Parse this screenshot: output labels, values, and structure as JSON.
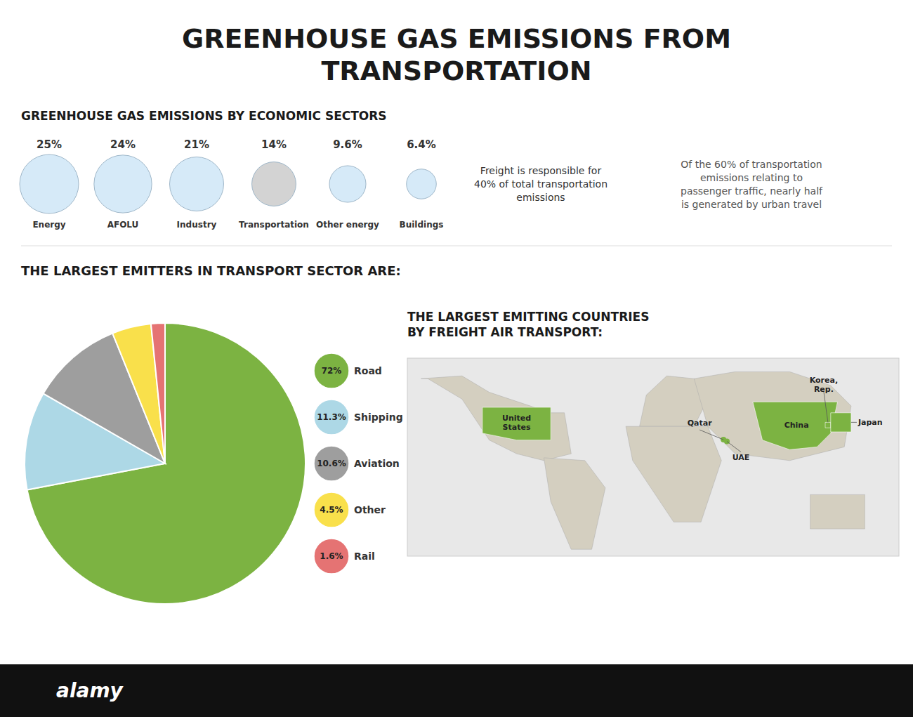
{
  "title": "GREENHOUSE GAS EMISSIONS FROM\nTRANSPORTATION",
  "annotations": [
    "Freight is responsible for\n40% of total transportation\nemissions",
    "Of the 60% of transportation\nemissions relating to\npassenger traffic, nearly half\nis generated by urban travel",
    "alamy"
  ],
  "chart_data": [
    {
      "type": "pictogram",
      "title": "GREENHOUSE GAS EMISSIONS BY ECONOMIC SECTORS",
      "categories": [
        "Energy",
        "AFOLU",
        "Industry",
        "Transportation",
        "Other energy",
        "Buildings"
      ],
      "values": [
        25,
        24,
        21,
        14,
        9.6,
        6.4
      ],
      "value_labels": [
        "25%",
        "24%",
        "21%",
        "14%",
        "9.6%",
        "6.4%"
      ],
      "colors": [
        "#d6eaf8",
        "#d6eaf8",
        "#d6eaf8",
        "#d3d3d3",
        "#d6eaf8",
        "#d6eaf8"
      ],
      "data_labels": true
    },
    {
      "type": "pie",
      "title": "THE LARGEST EMITTERS IN TRANSPORT SECTOR ARE:",
      "categories": [
        "Road",
        "Shipping",
        "Aviation",
        "Other",
        "Rail"
      ],
      "values": [
        72,
        11.3,
        10.6,
        4.5,
        1.6
      ],
      "value_labels": [
        "72%",
        "11.3%",
        "10.6%",
        "4.5%",
        "1.6%"
      ],
      "colors": [
        "#7cb342",
        "#add8e6",
        "#9e9e9e",
        "#f9e04b",
        "#e57373"
      ],
      "data_labels": true
    },
    {
      "type": "map",
      "title": "THE LARGEST EMITTING COUNTRIES\nBY FREIGHT AIR TRANSPORT:",
      "categories": [
        "United\nStates",
        "Qatar",
        "UAE",
        "China",
        "Korea,\nRep.",
        "Japan"
      ],
      "color": "#7cb342"
    }
  ]
}
